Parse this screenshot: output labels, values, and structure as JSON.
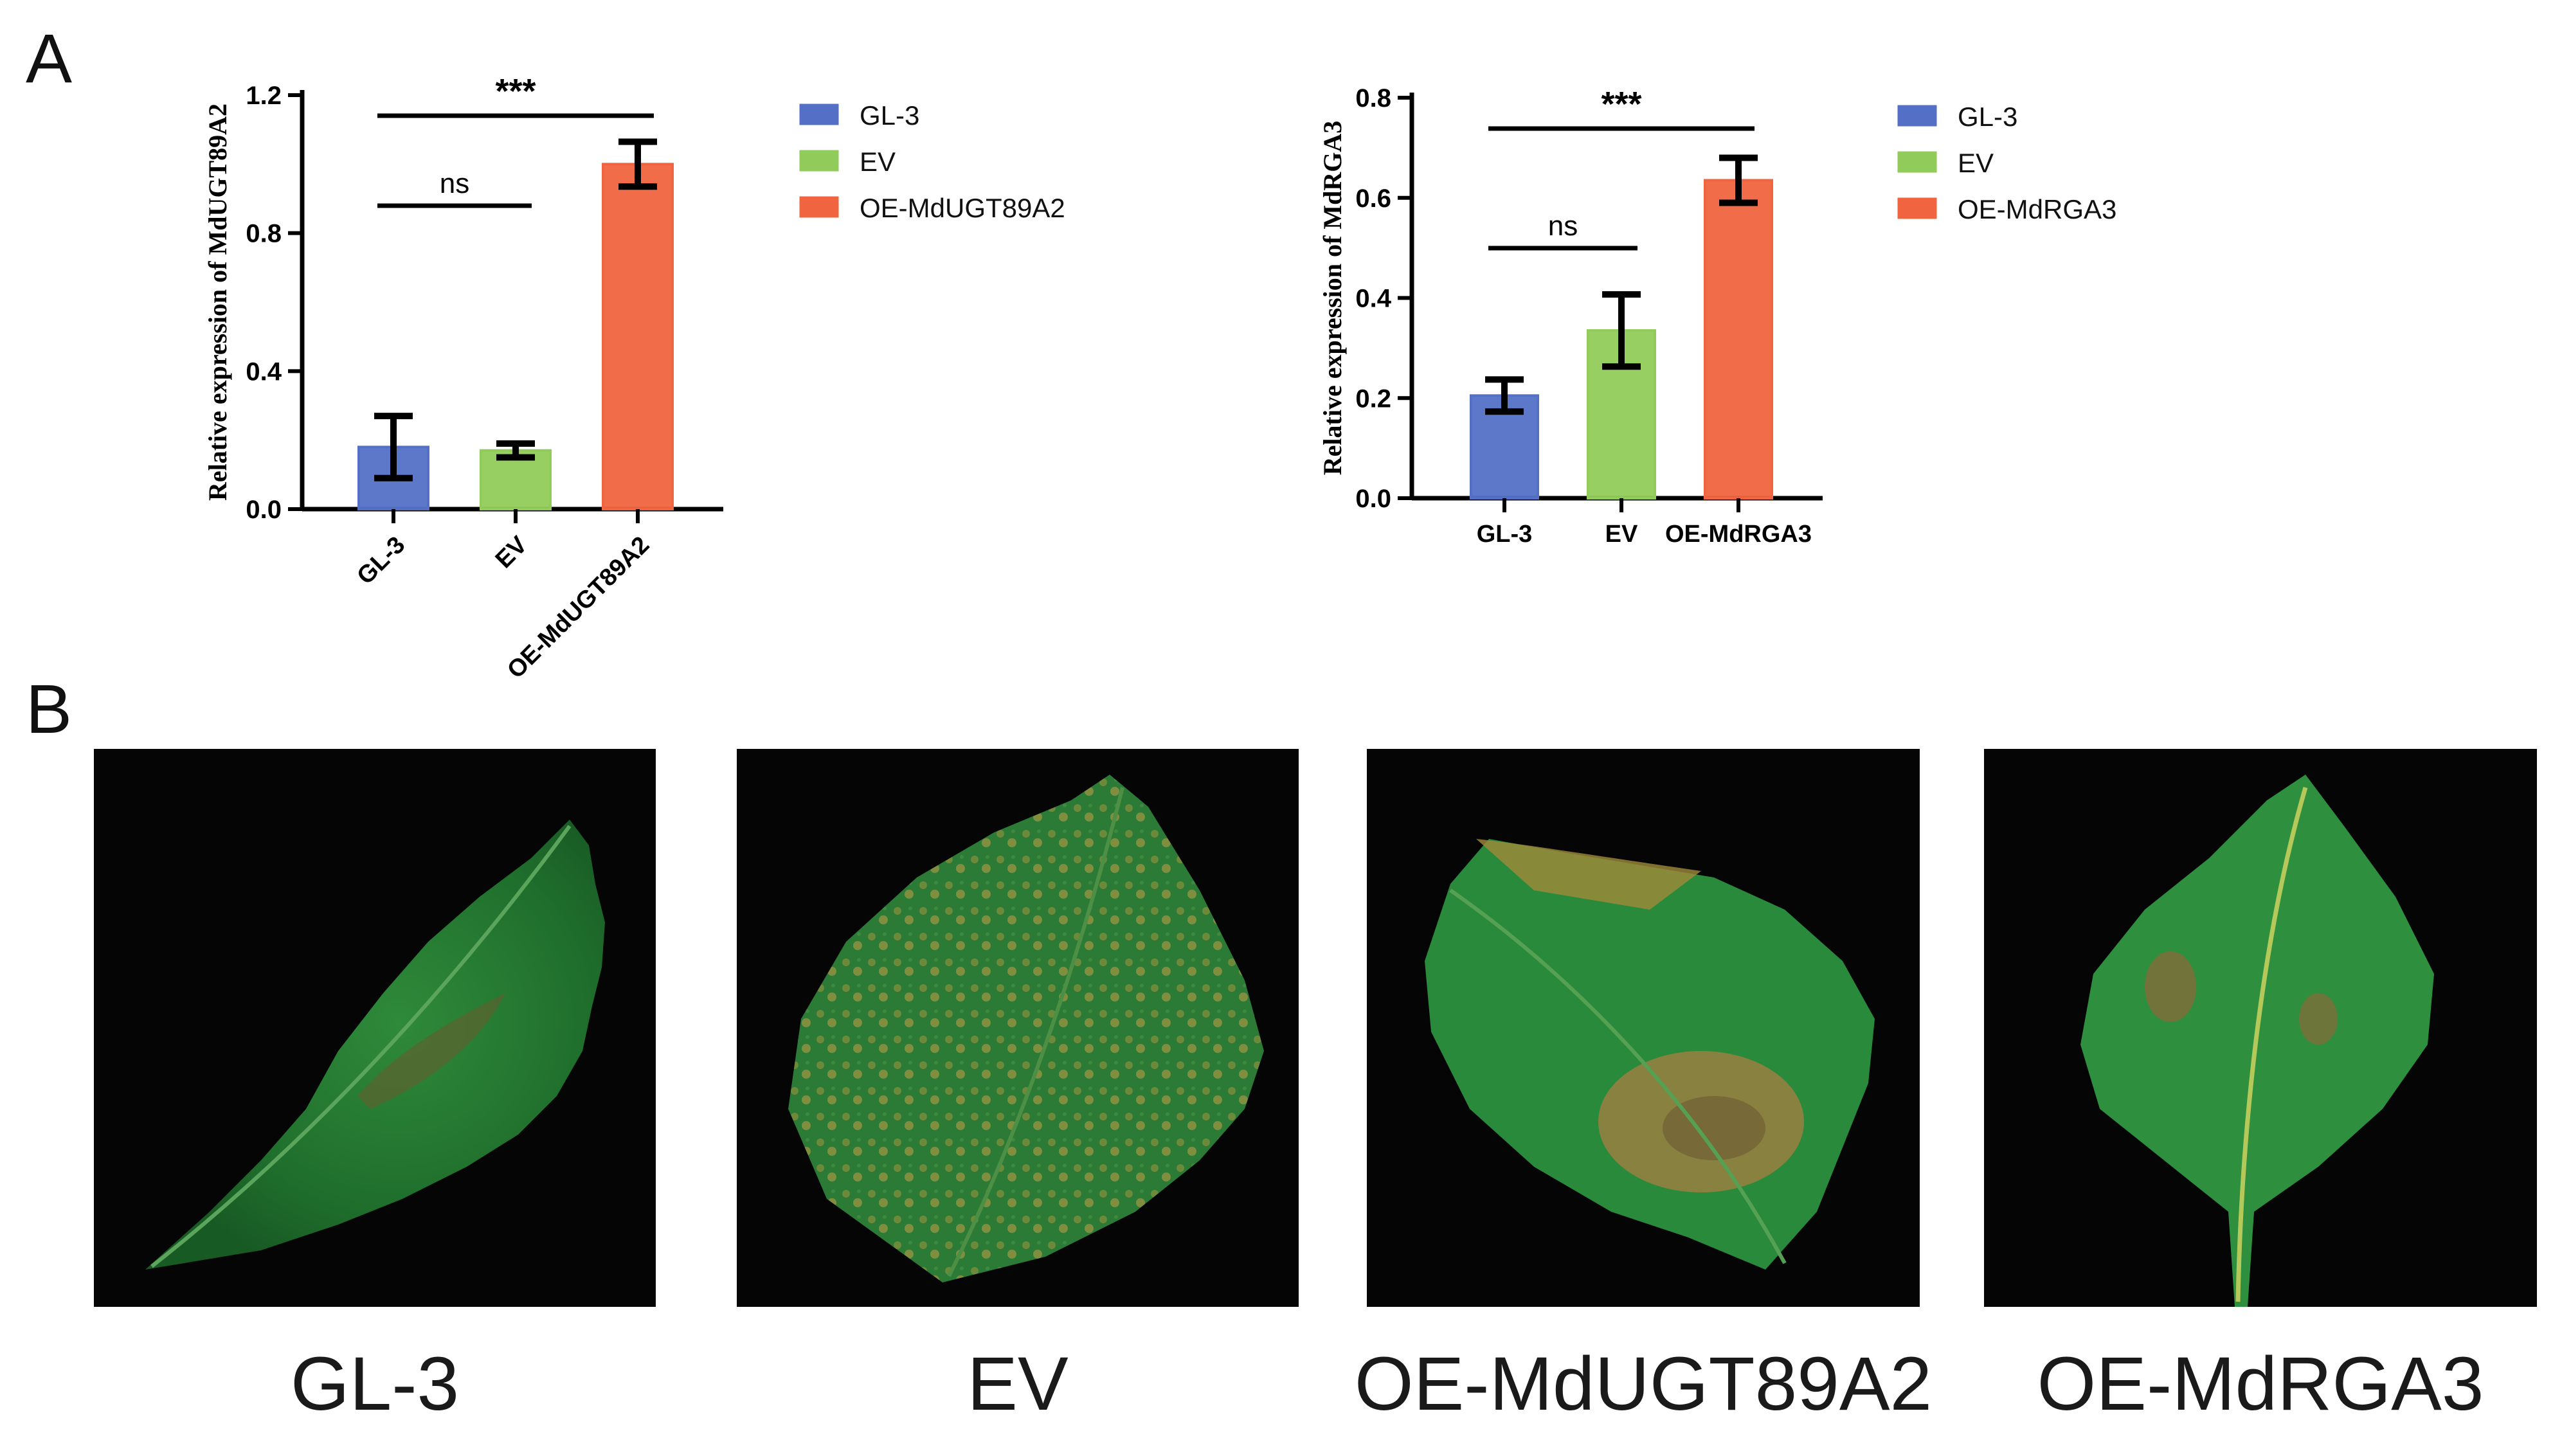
{
  "panels": {
    "a": "A",
    "b": "B"
  },
  "chart_data": [
    {
      "type": "bar",
      "categories": [
        "GL-3",
        "EV",
        "OE-MdUGT89A2"
      ],
      "values": [
        0.18,
        0.17,
        1.0
      ],
      "errors": [
        0.09,
        0.02,
        0.065
      ],
      "colors": [
        "#5470c6",
        "#91cc5a",
        "#f0653f"
      ],
      "ylabel": "Relative expression of MdUGT89A2",
      "ylim": [
        0,
        1.2
      ],
      "yticks": [
        "0.0",
        "0.4",
        "0.8",
        "1.2"
      ],
      "legend": [
        "GL-3",
        "EV",
        "OE-MdUGT89A2"
      ],
      "significance": [
        {
          "label": "ns",
          "from": "GL-3",
          "to": "EV"
        },
        {
          "label": "***",
          "from": "GL-3",
          "to": "OE-MdUGT89A2"
        }
      ],
      "legend_position": "right",
      "tick_labels_rotated": true
    },
    {
      "type": "bar",
      "categories": [
        "GL-3",
        "EV",
        "OE-MdRGA3"
      ],
      "values": [
        0.205,
        0.335,
        0.635
      ],
      "errors": [
        0.032,
        0.072,
        0.045
      ],
      "colors": [
        "#5470c6",
        "#91cc5a",
        "#f0653f"
      ],
      "ylabel": "Relative expression of MdRGA3",
      "ylim": [
        0,
        0.8
      ],
      "yticks": [
        "0.0",
        "0.2",
        "0.4",
        "0.6",
        "0.8"
      ],
      "legend": [
        "GL-3",
        "EV",
        "OE-MdRGA3"
      ],
      "significance": [
        {
          "label": "ns",
          "from": "GL-3",
          "to": "EV"
        },
        {
          "label": "***",
          "from": "GL-3",
          "to": "OE-MdRGA3"
        }
      ],
      "legend_position": "right",
      "tick_labels_rotated": false
    }
  ],
  "photos": [
    {
      "caption": "GL-3",
      "leaf": "leaf-with-small-brown-lesion"
    },
    {
      "caption": "EV",
      "leaf": "leaf-with-yellow-mottling"
    },
    {
      "caption": "OE-MdUGT89A2",
      "leaf": "leaf-with-large-brown-lesion"
    },
    {
      "caption": "OE-MdRGA3",
      "leaf": "leaf-with-small-brown-spots"
    }
  ]
}
